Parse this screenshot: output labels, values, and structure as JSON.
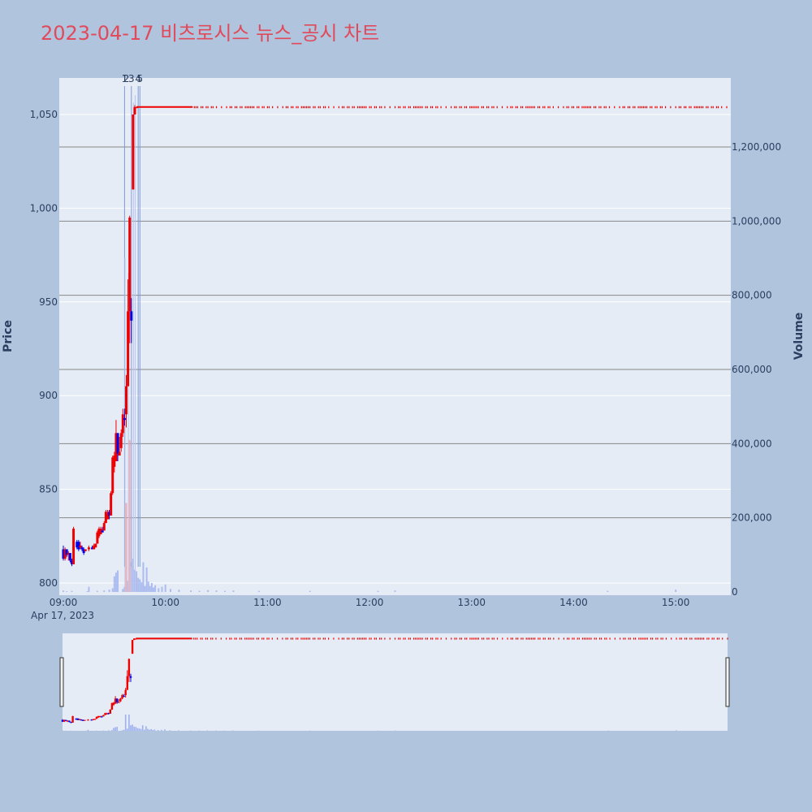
{
  "title": "2023-04-17 비츠로시스 뉴스_공시 차트",
  "colors": {
    "background": "#b0c4de",
    "plot_bg": "#e5ecf6",
    "up": "#ee0000",
    "down": "#0000ee",
    "news_line": "#7f9ad8",
    "grid": "#ffffff",
    "vol_grid": "#888888"
  },
  "chart_data": {
    "type": "candlestick",
    "date_label": "Apr 17, 2023",
    "ylabel": "Price",
    "y2label": "Volume",
    "ylim": [
      796,
      1069
    ],
    "y2lim": [
      0,
      1400000
    ],
    "price_ticks": [
      "800",
      "850",
      "900",
      "950",
      "1,000",
      "1,050"
    ],
    "volume_ticks": [
      "0",
      "200,000",
      "400,000",
      "600,000",
      "800,000",
      "1,000,000",
      "1,200,000"
    ],
    "x_ticks": [
      "09:00",
      "10:00",
      "11:00",
      "12:00",
      "13:00",
      "14:00",
      "15:00"
    ],
    "annotation_labels": [
      "1",
      "2",
      "3",
      "4",
      "5"
    ],
    "news_times": [
      "09:36",
      "09:40",
      "09:44",
      "09:45"
    ],
    "candles": [
      [
        "09:00",
        818,
        820,
        812,
        813
      ],
      [
        "09:01",
        813,
        819,
        812,
        818
      ],
      [
        "09:02",
        818,
        818,
        814,
        815
      ],
      [
        "09:03",
        815,
        817,
        812,
        816
      ],
      [
        "09:04",
        816,
        816,
        811,
        812
      ],
      [
        "09:05",
        812,
        813,
        809,
        810
      ],
      [
        "09:06",
        810,
        830,
        810,
        829
      ],
      [
        "09:08",
        822,
        823,
        818,
        819
      ],
      [
        "09:09",
        822,
        823,
        817,
        818
      ],
      [
        "09:10",
        819,
        822,
        818,
        820
      ],
      [
        "09:11",
        819,
        820,
        817,
        818
      ],
      [
        "09:12",
        818,
        819,
        815,
        816
      ],
      [
        "09:13",
        817,
        818,
        817,
        818
      ],
      [
        "09:15",
        818,
        820,
        817,
        819
      ],
      [
        "09:17",
        819,
        820,
        818,
        818
      ],
      [
        "09:18",
        818,
        821,
        818,
        820
      ],
      [
        "09:19",
        819,
        821,
        819,
        821
      ],
      [
        "09:20",
        821,
        828,
        821,
        827
      ],
      [
        "09:21",
        825,
        830,
        824,
        829
      ],
      [
        "09:22",
        826,
        830,
        826,
        829
      ],
      [
        "09:23",
        828,
        830,
        827,
        827
      ],
      [
        "09:24",
        828,
        833,
        828,
        832
      ],
      [
        "09:25",
        832,
        839,
        832,
        838
      ],
      [
        "09:26",
        834,
        839,
        834,
        837
      ],
      [
        "09:27",
        838,
        839,
        834,
        836
      ],
      [
        "09:28",
        836,
        849,
        836,
        848
      ],
      [
        "09:29",
        848,
        868,
        847,
        867
      ],
      [
        "09:30",
        862,
        870,
        859,
        868
      ],
      [
        "09:31",
        865,
        887,
        865,
        880
      ],
      [
        "09:32",
        880,
        880,
        865,
        869
      ],
      [
        "09:33",
        868,
        878,
        868,
        870
      ],
      [
        "09:34",
        872,
        882,
        870,
        880
      ],
      [
        "09:35",
        880,
        893,
        878,
        890
      ],
      [
        "09:36",
        888,
        893,
        884,
        887
      ],
      [
        "09:37",
        890,
        911,
        883,
        905
      ],
      [
        "09:38",
        905,
        962,
        905,
        945
      ],
      [
        "09:39",
        945,
        996,
        928,
        995
      ],
      [
        "09:40",
        945,
        952,
        928,
        940
      ],
      [
        "09:41",
        1010,
        1050,
        1010,
        1050
      ],
      [
        "09:42",
        1050,
        1055,
        1050,
        1054
      ],
      [
        "09:43",
        1054,
        1054,
        1054,
        1054
      ]
    ],
    "vol_big": [
      [
        "09:36",
        900000
      ],
      [
        "09:38",
        860000
      ],
      [
        "09:40",
        1300000
      ],
      [
        "09:41",
        1320000
      ],
      [
        "09:42",
        1340000
      ]
    ],
    "volumes": [
      [
        "09:00",
        4000
      ],
      [
        "09:02",
        2000
      ],
      [
        "09:05",
        3000
      ],
      [
        "09:14",
        2000
      ],
      [
        "09:15",
        14000
      ],
      [
        "09:20",
        3000
      ],
      [
        "09:24",
        4000
      ],
      [
        "09:27",
        6000
      ],
      [
        "09:29",
        10000
      ],
      [
        "09:30",
        42000
      ],
      [
        "09:31",
        52000
      ],
      [
        "09:32",
        58000
      ],
      [
        "09:35",
        8000
      ],
      [
        "09:36",
        14000
      ],
      [
        "09:37",
        240000
      ],
      [
        "09:38",
        30000
      ],
      [
        "09:39",
        410000
      ],
      [
        "09:40",
        80000
      ],
      [
        "09:41",
        90000
      ],
      [
        "09:42",
        60000
      ],
      [
        "09:43",
        56000
      ],
      [
        "09:44",
        38000
      ],
      [
        "09:45",
        34000
      ],
      [
        "09:46",
        26000
      ],
      [
        "09:47",
        80000
      ],
      [
        "09:48",
        16000
      ],
      [
        "09:49",
        66000
      ],
      [
        "09:50",
        28000
      ],
      [
        "09:51",
        16000
      ],
      [
        "09:52",
        24000
      ],
      [
        "09:53",
        12000
      ],
      [
        "09:54",
        18000
      ],
      [
        "09:56",
        10000
      ],
      [
        "09:58",
        14000
      ],
      [
        "10:00",
        20000
      ],
      [
        "10:03",
        8000
      ],
      [
        "10:08",
        6000
      ],
      [
        "10:15",
        4000
      ],
      [
        "10:20",
        3000
      ],
      [
        "10:25",
        5000
      ],
      [
        "10:30",
        4000
      ],
      [
        "10:35",
        3000
      ],
      [
        "10:40",
        4000
      ],
      [
        "10:55",
        3000
      ],
      [
        "11:25",
        3000
      ],
      [
        "12:05",
        3000
      ],
      [
        "12:15",
        4000
      ],
      [
        "14:20",
        3000
      ],
      [
        "15:00",
        6000
      ]
    ],
    "flat_price": 1054,
    "flat_from": "09:43",
    "flat_to": "15:30"
  }
}
